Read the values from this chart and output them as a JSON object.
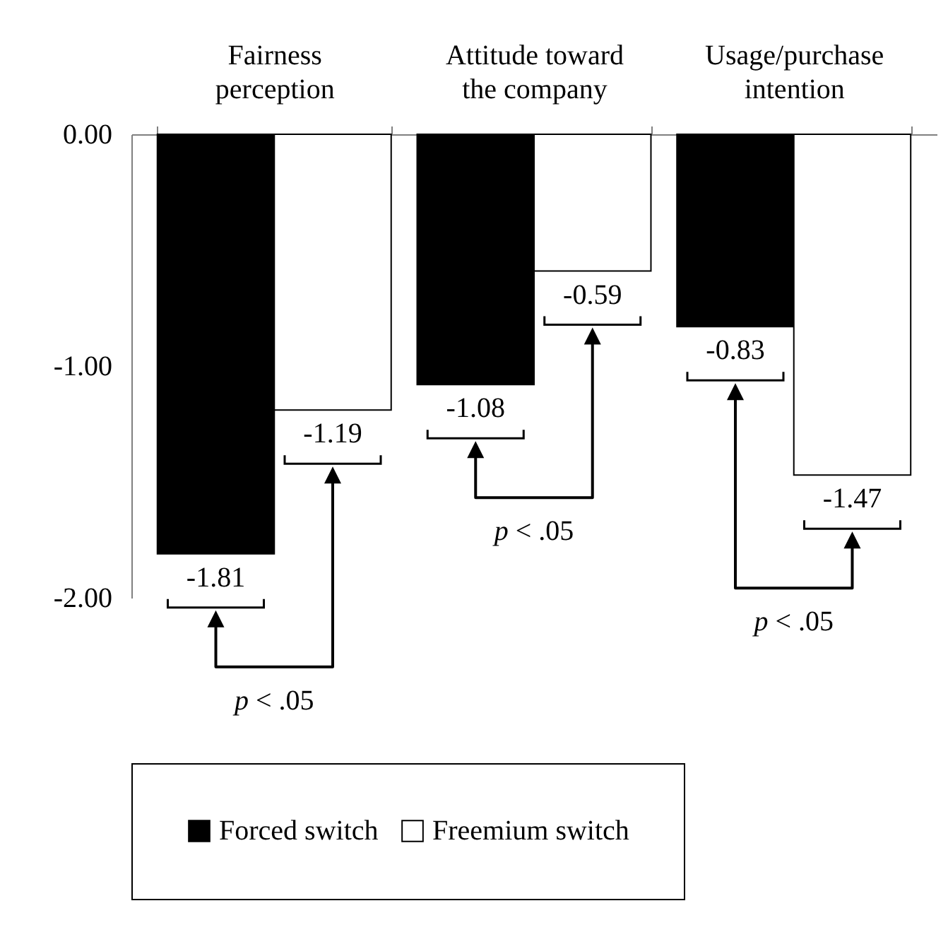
{
  "chart_data": {
    "type": "bar",
    "categories": [
      "Fairness perception",
      "Attitude toward the company",
      "Usage/purchase intention"
    ],
    "series": [
      {
        "name": "Forced switch",
        "color": "#000000",
        "values": [
          -1.81,
          -1.08,
          -0.83
        ]
      },
      {
        "name": "Freemium switch",
        "color": "#ffffff",
        "values": [
          -1.19,
          -0.59,
          -1.47
        ]
      }
    ],
    "ylim": [
      -2,
      0
    ],
    "yticks": [
      {
        "value": -2,
        "label": "-2.00"
      },
      {
        "value": -1,
        "label": "-1.00"
      },
      {
        "value": 0,
        "label": "0.00"
      }
    ],
    "data_labels": true,
    "legend": "bottom",
    "annotations": [
      "p < .05",
      "p < .05",
      "p < .05"
    ]
  }
}
